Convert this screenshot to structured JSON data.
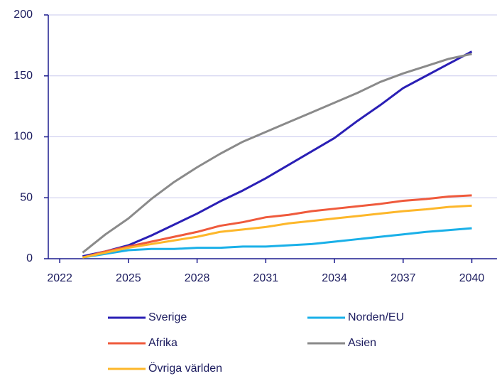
{
  "chart_data": {
    "type": "line",
    "x": [
      2023,
      2024,
      2025,
      2026,
      2027,
      2028,
      2029,
      2030,
      2031,
      2032,
      2033,
      2034,
      2035,
      2036,
      2037,
      2038,
      2039,
      2040
    ],
    "series": [
      {
        "name": "Sverige",
        "color": "#2a1fb5",
        "values": [
          2,
          6,
          11,
          19,
          28,
          37,
          47,
          56,
          66,
          77,
          88,
          99,
          113,
          126,
          140,
          150,
          160,
          170
        ]
      },
      {
        "name": "Norden/EU",
        "color": "#1ab0e8",
        "values": [
          1,
          4,
          7,
          8,
          8,
          9,
          9,
          10,
          10,
          11,
          12,
          14,
          16,
          18,
          20,
          22,
          23.5,
          25
        ]
      },
      {
        "name": "Afrika",
        "color": "#ef5a3c",
        "values": [
          1,
          6,
          10,
          14,
          18,
          22,
          27,
          30,
          34,
          36,
          39,
          41,
          43,
          45,
          47.5,
          49,
          51,
          52
        ]
      },
      {
        "name": "Asien",
        "color": "#8a8a8a",
        "values": [
          5,
          20,
          33,
          49,
          63,
          75,
          86,
          96,
          104,
          112,
          120,
          128,
          136,
          145,
          152,
          158,
          164,
          168
        ]
      },
      {
        "name": "Övriga världen",
        "color": "#fdb72a",
        "values": [
          1,
          5,
          9,
          12,
          15,
          18,
          22,
          24,
          26,
          29,
          31,
          33,
          35,
          37,
          39,
          40.5,
          42.5,
          43.5
        ]
      }
    ],
    "xlim": [
      2021.5,
      2041.1
    ],
    "xticks": [
      2022,
      2025,
      2028,
      2031,
      2034,
      2037,
      2040
    ],
    "ylim": [
      0,
      200
    ],
    "yticks": [
      0,
      50,
      100,
      150,
      200
    ],
    "grid": true,
    "legend": "bottom"
  }
}
